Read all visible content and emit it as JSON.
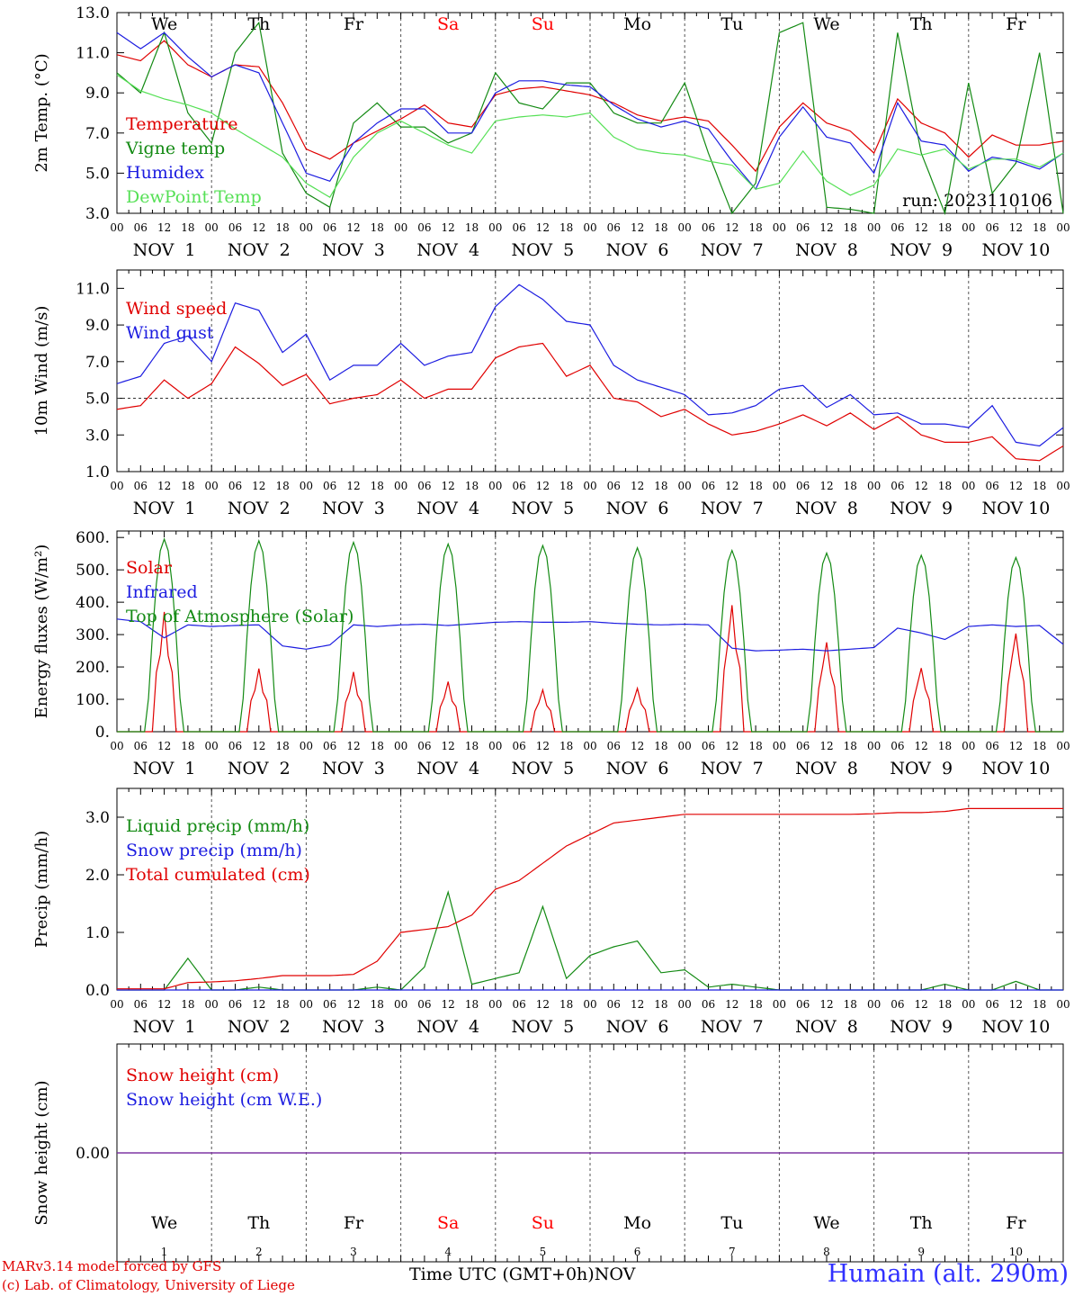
{
  "footer": {
    "model": "MARv3.14 model forced by GFS",
    "copyright": "(c) Lab. of Climatology, University of Liege",
    "station": "Humain (alt. 290m)",
    "time_axis": "Time UTC (GMT+0h)",
    "month": "NOV"
  },
  "colors": {
    "red": "#e00000",
    "green": "#138a13",
    "blue": "#1c1ce0",
    "lightgreen": "#55e055",
    "purple": "#7a2e9e",
    "weekend": "#ff0000"
  },
  "chart_data": [
    {
      "type": "line",
      "ylabel": "2m Temp. (°C)",
      "ylim": [
        3.0,
        13.0
      ],
      "yticks": [
        "3.0",
        "5.0",
        "7.0",
        "9.0",
        "11.0",
        "13.0"
      ],
      "annotation": "run: 2023110106",
      "x_hours": [
        0,
        6,
        12,
        18,
        24,
        30,
        36,
        42,
        48,
        54,
        60,
        66,
        72,
        78,
        84,
        90,
        96,
        102,
        108,
        114,
        120,
        126,
        132,
        138,
        144,
        150,
        156,
        162,
        168,
        174,
        180,
        186,
        192,
        198,
        204,
        210,
        216,
        222,
        228,
        234,
        240
      ],
      "series": [
        {
          "name": "Temperature",
          "color": "#e00000",
          "values": [
            10.9,
            10.6,
            11.6,
            10.4,
            9.8,
            10.4,
            10.3,
            8.5,
            6.2,
            5.7,
            6.5,
            7.1,
            7.7,
            8.4,
            7.5,
            7.3,
            8.9,
            9.2,
            9.3,
            9.1,
            8.9,
            8.5,
            7.9,
            7.6,
            7.8,
            7.6,
            6.4,
            5.1,
            7.3,
            8.5,
            7.5,
            7.1,
            6.0,
            8.7,
            7.5,
            7.0,
            5.8,
            6.9,
            6.4,
            6.4,
            6.6
          ]
        },
        {
          "name": "Vigne temp",
          "color": "#138a13",
          "values": [
            10.0,
            9.0,
            12.0,
            8.0,
            6.5,
            11.0,
            12.5,
            6.0,
            4.0,
            3.3,
            7.5,
            8.5,
            7.3,
            7.3,
            6.5,
            7.0,
            10.0,
            8.5,
            8.2,
            9.5,
            9.5,
            8.0,
            7.5,
            7.5,
            9.5,
            6.0,
            3.0,
            4.5,
            12.0,
            12.5,
            3.3,
            3.2,
            3.0,
            12.0,
            6.0,
            3.0,
            9.5,
            4.0,
            5.5,
            11.0,
            3.0
          ]
        },
        {
          "name": "Humidex",
          "color": "#1c1ce0",
          "values": [
            12.0,
            11.2,
            12.0,
            10.8,
            9.8,
            10.4,
            10.0,
            7.5,
            5.0,
            4.6,
            6.5,
            7.5,
            8.2,
            8.2,
            7.0,
            7.0,
            9.0,
            9.6,
            9.6,
            9.4,
            9.3,
            8.4,
            7.7,
            7.3,
            7.6,
            7.2,
            5.6,
            4.2,
            6.8,
            8.3,
            6.8,
            6.5,
            5.0,
            8.5,
            6.6,
            6.4,
            5.1,
            5.8,
            5.6,
            5.2,
            6.0
          ]
        },
        {
          "name": "DewPoint Temp",
          "color": "#55e055",
          "values": [
            9.9,
            9.1,
            8.7,
            8.4,
            8.0,
            7.2,
            6.5,
            5.8,
            4.5,
            3.8,
            5.8,
            7.0,
            7.6,
            7.0,
            6.4,
            6.0,
            7.6,
            7.8,
            7.9,
            7.8,
            8.0,
            6.8,
            6.2,
            6.0,
            5.9,
            5.6,
            5.4,
            4.2,
            4.5,
            6.1,
            4.6,
            3.9,
            4.4,
            6.2,
            5.9,
            6.2,
            5.2,
            5.7,
            5.7,
            5.3,
            6.0
          ]
        }
      ]
    },
    {
      "type": "line",
      "ylabel": "10m Wind (m/s)",
      "ylim": [
        1.0,
        12.0
      ],
      "yticks": [
        "1.0",
        "3.0",
        "5.0",
        "7.0",
        "9.0",
        "11.0"
      ],
      "ref_line": 5.0,
      "x_hours": [
        0,
        6,
        12,
        18,
        24,
        30,
        36,
        42,
        48,
        54,
        60,
        66,
        72,
        78,
        84,
        90,
        96,
        102,
        108,
        114,
        120,
        126,
        132,
        138,
        144,
        150,
        156,
        162,
        168,
        174,
        180,
        186,
        192,
        198,
        204,
        210,
        216,
        222,
        228,
        234,
        240
      ],
      "series": [
        {
          "name": "Wind speed",
          "color": "#e00000",
          "values": [
            4.4,
            4.6,
            6.0,
            5.0,
            5.8,
            7.8,
            6.9,
            5.7,
            6.3,
            4.7,
            5.0,
            5.2,
            6.0,
            5.0,
            5.5,
            5.5,
            7.2,
            7.8,
            8.0,
            6.2,
            6.8,
            5.0,
            4.8,
            4.0,
            4.4,
            3.6,
            3.0,
            3.2,
            3.6,
            4.1,
            3.5,
            4.2,
            3.3,
            4.0,
            3.0,
            2.6,
            2.6,
            2.9,
            1.7,
            1.6,
            2.4
          ]
        },
        {
          "name": "Wind gust",
          "color": "#1c1ce0",
          "values": [
            5.8,
            6.2,
            8.0,
            8.4,
            7.0,
            10.2,
            9.8,
            7.5,
            8.5,
            6.0,
            6.8,
            6.8,
            8.0,
            6.8,
            7.3,
            7.5,
            10.0,
            11.2,
            10.4,
            9.2,
            9.0,
            6.8,
            6.0,
            5.6,
            5.2,
            4.1,
            4.2,
            4.6,
            5.5,
            5.7,
            4.5,
            5.2,
            4.1,
            4.2,
            3.6,
            3.6,
            3.4,
            4.6,
            2.6,
            2.4,
            3.4
          ]
        }
      ]
    },
    {
      "type": "line",
      "ylabel": "Energy fluxes (W/m²)",
      "ylim": [
        0,
        620
      ],
      "yticks": [
        "0.",
        "100.",
        "200.",
        "300.",
        "400.",
        "500.",
        "600."
      ],
      "x_hours": [
        0,
        6,
        12,
        18,
        24,
        30,
        36,
        42,
        48,
        54,
        60,
        66,
        72,
        78,
        84,
        90,
        96,
        102,
        108,
        114,
        120,
        126,
        132,
        138,
        144,
        150,
        156,
        162,
        168,
        174,
        180,
        186,
        192,
        198,
        204,
        210,
        216,
        222,
        228,
        234,
        240
      ],
      "series": [
        {
          "name": "Solar",
          "color": "#e00000",
          "daily_peaks": [
            370,
            195,
            185,
            155,
            130,
            135,
            395,
            280,
            200,
            310
          ]
        },
        {
          "name": "Infrared",
          "color": "#1c1ce0",
          "values": [
            348,
            340,
            290,
            330,
            325,
            328,
            330,
            265,
            255,
            268,
            330,
            325,
            330,
            332,
            328,
            333,
            338,
            340,
            338,
            338,
            340,
            335,
            332,
            330,
            332,
            330,
            258,
            250,
            252,
            255,
            250,
            255,
            260,
            320,
            305,
            285,
            325,
            330,
            325,
            328,
            270
          ]
        },
        {
          "name": "Top of Atmosphere (Solar)",
          "color": "#138a13",
          "daily_peaks": [
            595,
            590,
            585,
            580,
            575,
            568,
            560,
            552,
            545,
            538
          ]
        }
      ]
    },
    {
      "type": "line",
      "ylabel": "Precip (mm/h)",
      "ylim": [
        0,
        3.5
      ],
      "yticks": [
        "0.0",
        "1.0",
        "2.0",
        "3.0"
      ],
      "x_hours": [
        0,
        6,
        12,
        18,
        24,
        30,
        36,
        42,
        48,
        54,
        60,
        66,
        72,
        78,
        84,
        90,
        96,
        102,
        108,
        114,
        120,
        126,
        132,
        138,
        144,
        150,
        156,
        162,
        168,
        174,
        180,
        186,
        192,
        198,
        204,
        210,
        216,
        222,
        228,
        234,
        240
      ],
      "series": [
        {
          "name": "Liquid precip (mm/h)",
          "color": "#138a13",
          "values": [
            0,
            0,
            0,
            0.55,
            0,
            0,
            0.05,
            0,
            0,
            0,
            0,
            0.05,
            0,
            0.4,
            1.7,
            0.1,
            0.2,
            0.3,
            1.45,
            0.2,
            0.6,
            0.75,
            0.85,
            0.3,
            0.35,
            0.05,
            0.1,
            0.05,
            0,
            0,
            0,
            0,
            0,
            0,
            0,
            0.1,
            0,
            0,
            0.15,
            0,
            0
          ]
        },
        {
          "name": "Snow precip (mm/h)",
          "color": "#1c1ce0",
          "values": [
            0,
            0,
            0,
            0,
            0,
            0,
            0,
            0,
            0,
            0,
            0,
            0,
            0,
            0,
            0,
            0,
            0,
            0,
            0,
            0,
            0,
            0,
            0,
            0,
            0,
            0,
            0,
            0,
            0,
            0,
            0,
            0,
            0,
            0,
            0,
            0,
            0,
            0,
            0,
            0,
            0
          ]
        },
        {
          "name": "Total cumulated (cm)",
          "color": "#e00000",
          "values": [
            0.02,
            0.02,
            0.02,
            0.13,
            0.14,
            0.16,
            0.2,
            0.25,
            0.25,
            0.25,
            0.27,
            0.5,
            1.0,
            1.05,
            1.1,
            1.3,
            1.75,
            1.9,
            2.2,
            2.5,
            2.7,
            2.9,
            2.95,
            3.0,
            3.05,
            3.05,
            3.05,
            3.05,
            3.05,
            3.05,
            3.05,
            3.05,
            3.06,
            3.08,
            3.08,
            3.1,
            3.15,
            3.15,
            3.15,
            3.15,
            3.15
          ]
        }
      ]
    },
    {
      "type": "line",
      "ylabel": "Snow height (cm)",
      "ylim": [
        -1,
        1
      ],
      "yticks": [
        "0.00"
      ],
      "series": [
        {
          "name": "Snow height (cm)",
          "color": "#e00000",
          "values": [
            0,
            0
          ]
        },
        {
          "name": "Snow height (cm W.E.)",
          "color": "#1c1ce0",
          "values": [
            0,
            0
          ]
        }
      ]
    }
  ],
  "days": [
    "We",
    "Th",
    "Fr",
    "Sa",
    "Su",
    "Mo",
    "Tu",
    "We",
    "Th",
    "Fr"
  ],
  "weekend_days": [
    "Sa",
    "Su"
  ],
  "day_numbers": [
    "1",
    "2",
    "3",
    "4",
    "5",
    "6",
    "7",
    "8",
    "9",
    "10"
  ],
  "date_labels": [
    "NOV  1",
    "NOV  2",
    "NOV  3",
    "NOV  4",
    "NOV  5",
    "NOV  6",
    "NOV  7",
    "NOV  8",
    "NOV  9",
    "NOV 10"
  ],
  "hour_ticks": [
    "00",
    "06",
    "12",
    "18"
  ],
  "final_tick": "00"
}
